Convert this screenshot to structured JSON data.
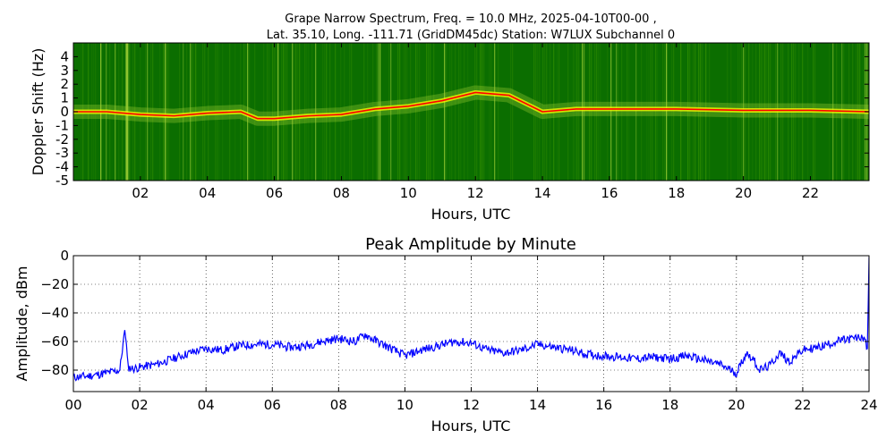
{
  "figure": {
    "title_line1": "Grape Narrow Spectrum, Freq. = 10.0 MHz, 2025-04-10T00-00 ,",
    "title_line2": "Lat.  35.10, Long. -111.71 (GridDM45dc) Station: W7LUX Subchannel 0"
  },
  "chart_data": [
    {
      "type": "heatmap",
      "title": "",
      "xlabel": "Hours, UTC",
      "ylabel": "Doppler Shift (Hz)",
      "xlim": [
        0,
        23.75
      ],
      "ylim": [
        -5,
        5
      ],
      "x_ticks": [
        "02",
        "04",
        "06",
        "08",
        "10",
        "12",
        "14",
        "16",
        "18",
        "20",
        "22"
      ],
      "x_tick_values": [
        2,
        4,
        6,
        8,
        10,
        12,
        14,
        16,
        18,
        20,
        22
      ],
      "y_ticks": [
        "4",
        "3",
        "2",
        "1",
        "0",
        "-1",
        "-2",
        "-3",
        "-4",
        "-5"
      ],
      "y_tick_values": [
        4,
        3,
        2,
        1,
        0,
        -1,
        -2,
        -3,
        -4,
        -5
      ],
      "grid": false,
      "colormap": [
        "#006400",
        "#2e8b00",
        "#9acd32",
        "#ffff00",
        "#ff0000"
      ],
      "doppler_trace": {
        "hours": [
          0,
          1,
          2,
          3,
          4,
          5,
          5.5,
          6,
          7,
          8,
          9,
          10,
          11,
          12,
          13,
          13.5,
          14,
          15,
          16,
          18,
          20,
          22,
          23.75
        ],
        "hz": [
          0,
          0,
          -0.2,
          -0.3,
          -0.1,
          0,
          -0.5,
          -0.5,
          -0.3,
          -0.2,
          0.2,
          0.4,
          0.8,
          1.4,
          1.2,
          0.6,
          0,
          0.2,
          0.2,
          0.2,
          0.1,
          0.1,
          0
        ]
      }
    },
    {
      "type": "line",
      "title": "Peak Amplitude by Minute",
      "xlabel": "Hours, UTC",
      "ylabel": "Amplitude, dBm",
      "xlim": [
        0,
        24
      ],
      "ylim": [
        -95,
        0
      ],
      "x_ticks": [
        "00",
        "02",
        "04",
        "06",
        "08",
        "10",
        "12",
        "14",
        "16",
        "18",
        "20",
        "22",
        "24"
      ],
      "x_tick_values": [
        0,
        2,
        4,
        6,
        8,
        10,
        12,
        14,
        16,
        18,
        20,
        22,
        24
      ],
      "y_ticks": [
        "0",
        "−20",
        "−40",
        "−60",
        "−80"
      ],
      "y_tick_values": [
        0,
        -20,
        -40,
        -60,
        -80
      ],
      "grid": true,
      "line_color": "#0000ff",
      "series": [
        {
          "x": [
            0,
            0.5,
            1.0,
            1.4,
            1.55,
            1.6,
            1.65,
            1.8,
            2.0,
            2.5,
            3.0,
            3.5,
            4.0,
            4.5,
            5.0,
            5.5,
            6.0,
            6.5,
            7.0,
            7.5,
            8.0,
            8.5,
            8.8,
            9.0,
            9.5,
            10.0,
            10.5,
            11.0,
            11.5,
            12.0,
            12.5,
            13.0,
            13.5,
            14.0,
            14.5,
            15.0,
            15.5,
            16.0,
            16.5,
            17.0,
            17.5,
            18.0,
            18.5,
            19.0,
            19.5,
            20.0,
            20.3,
            20.5,
            20.7,
            21.0,
            21.3,
            21.6,
            22.0,
            22.5,
            23.0,
            23.5,
            23.85,
            23.95,
            24.0
          ],
          "y": [
            -85,
            -84,
            -82,
            -80,
            -52,
            -62,
            -78,
            -79,
            -78,
            -76,
            -72,
            -68,
            -65,
            -66,
            -63,
            -62,
            -62,
            -64,
            -63,
            -60,
            -58,
            -60,
            -55,
            -58,
            -64,
            -70,
            -66,
            -63,
            -60,
            -61,
            -66,
            -68,
            -66,
            -62,
            -64,
            -66,
            -69,
            -70,
            -71,
            -72,
            -71,
            -72,
            -70,
            -73,
            -76,
            -82,
            -68,
            -72,
            -80,
            -77,
            -68,
            -74,
            -66,
            -64,
            -60,
            -58,
            -57,
            -65,
            -1
          ]
        }
      ]
    }
  ]
}
